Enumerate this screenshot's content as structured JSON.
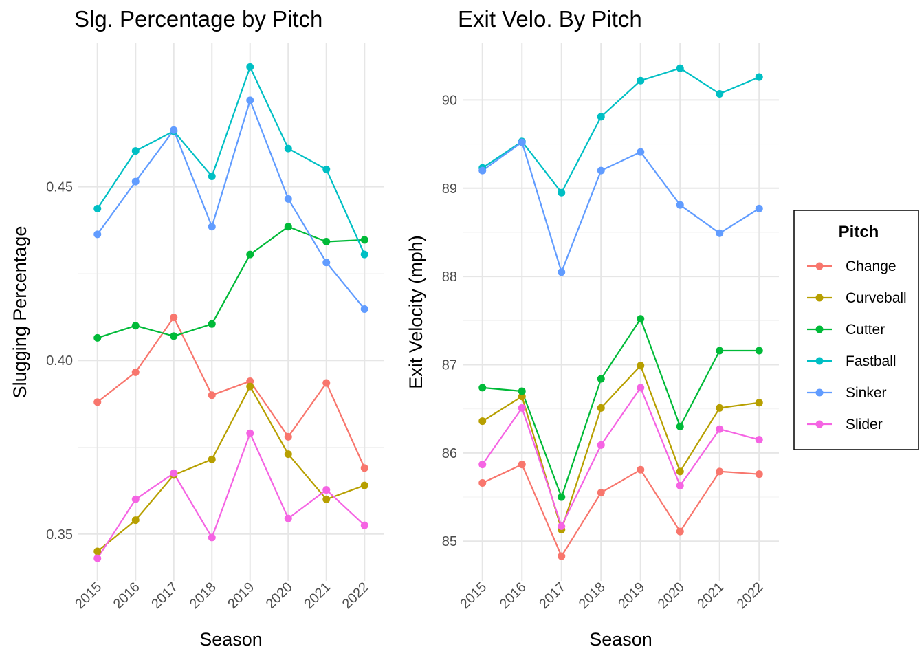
{
  "chart_data": [
    {
      "type": "line",
      "title": "Slg. Percentage by Pitch",
      "xlabel": "Season",
      "ylabel": "Slugging Percentage",
      "x": [
        "2015",
        "2016",
        "2017",
        "2018",
        "2019",
        "2020",
        "2021",
        "2022"
      ],
      "ylim": [
        0.3365,
        0.4915
      ],
      "yticks": [
        0.35,
        0.4,
        0.45
      ],
      "ytick_labels": [
        "0.35",
        "0.40",
        "0.45"
      ],
      "series": [
        {
          "name": "Change",
          "values": [
            0.388,
            0.3966,
            0.4124,
            0.39,
            0.394,
            0.378,
            0.3935,
            0.369
          ]
        },
        {
          "name": "Curveball",
          "values": [
            0.345,
            0.354,
            0.367,
            0.3715,
            0.3925,
            0.373,
            0.36,
            0.364
          ]
        },
        {
          "name": "Cutter",
          "values": [
            0.4065,
            0.41,
            0.407,
            0.4105,
            0.4305,
            0.4385,
            0.4342,
            0.4347
          ]
        },
        {
          "name": "Fastball",
          "values": [
            0.4437,
            0.4603,
            0.466,
            0.453,
            0.4845,
            0.461,
            0.455,
            0.4305
          ]
        },
        {
          "name": "Sinker",
          "values": [
            0.4363,
            0.4515,
            0.4663,
            0.4385,
            0.4749,
            0.4465,
            0.4282,
            0.4148
          ]
        },
        {
          "name": "Slider",
          "values": [
            0.343,
            0.36,
            0.3675,
            0.349,
            0.379,
            0.3545,
            0.3627,
            0.3525
          ]
        }
      ],
      "legend": "right"
    },
    {
      "type": "line",
      "title": "Exit Velo. By Pitch",
      "xlabel": "Season",
      "ylabel": "Exit Velocity (mph)",
      "x": [
        "2015",
        "2016",
        "2017",
        "2018",
        "2019",
        "2020",
        "2021",
        "2022"
      ],
      "ylim": [
        84.55,
        90.65
      ],
      "yticks": [
        85,
        86,
        87,
        88,
        89,
        90
      ],
      "ytick_labels": [
        "85",
        "86",
        "87",
        "88",
        "89",
        "90"
      ],
      "series": [
        {
          "name": "Change",
          "values": [
            85.66,
            85.87,
            84.83,
            85.55,
            85.81,
            85.11,
            85.79,
            85.76
          ]
        },
        {
          "name": "Curveball",
          "values": [
            86.36,
            86.64,
            85.13,
            86.51,
            86.99,
            85.79,
            86.51,
            86.57
          ]
        },
        {
          "name": "Cutter",
          "values": [
            86.74,
            86.7,
            85.5,
            86.84,
            87.52,
            86.3,
            87.16,
            87.16
          ]
        },
        {
          "name": "Fastball",
          "values": [
            89.23,
            89.53,
            88.95,
            89.81,
            90.22,
            90.36,
            90.07,
            90.26
          ]
        },
        {
          "name": "Sinker",
          "values": [
            89.2,
            89.52,
            88.05,
            89.2,
            89.41,
            88.81,
            88.49,
            88.77
          ]
        },
        {
          "name": "Slider",
          "values": [
            85.87,
            86.51,
            85.17,
            86.09,
            86.74,
            85.63,
            86.27,
            86.15
          ]
        }
      ],
      "legend": "right"
    }
  ],
  "legend": {
    "title": "Pitch",
    "items": [
      "Change",
      "Curveball",
      "Cutter",
      "Fastball",
      "Sinker",
      "Slider"
    ]
  },
  "colors": {
    "Change": "#F8766D",
    "Curveball": "#B79F00",
    "Cutter": "#00BA38",
    "Fastball": "#00BFC4",
    "Sinker": "#619CFF",
    "Slider": "#F564E3",
    "grid_major": "#E6E6E6",
    "grid_minor": "#F2F2F2",
    "text": "#000000",
    "tick_text": "#4D4D4D"
  }
}
